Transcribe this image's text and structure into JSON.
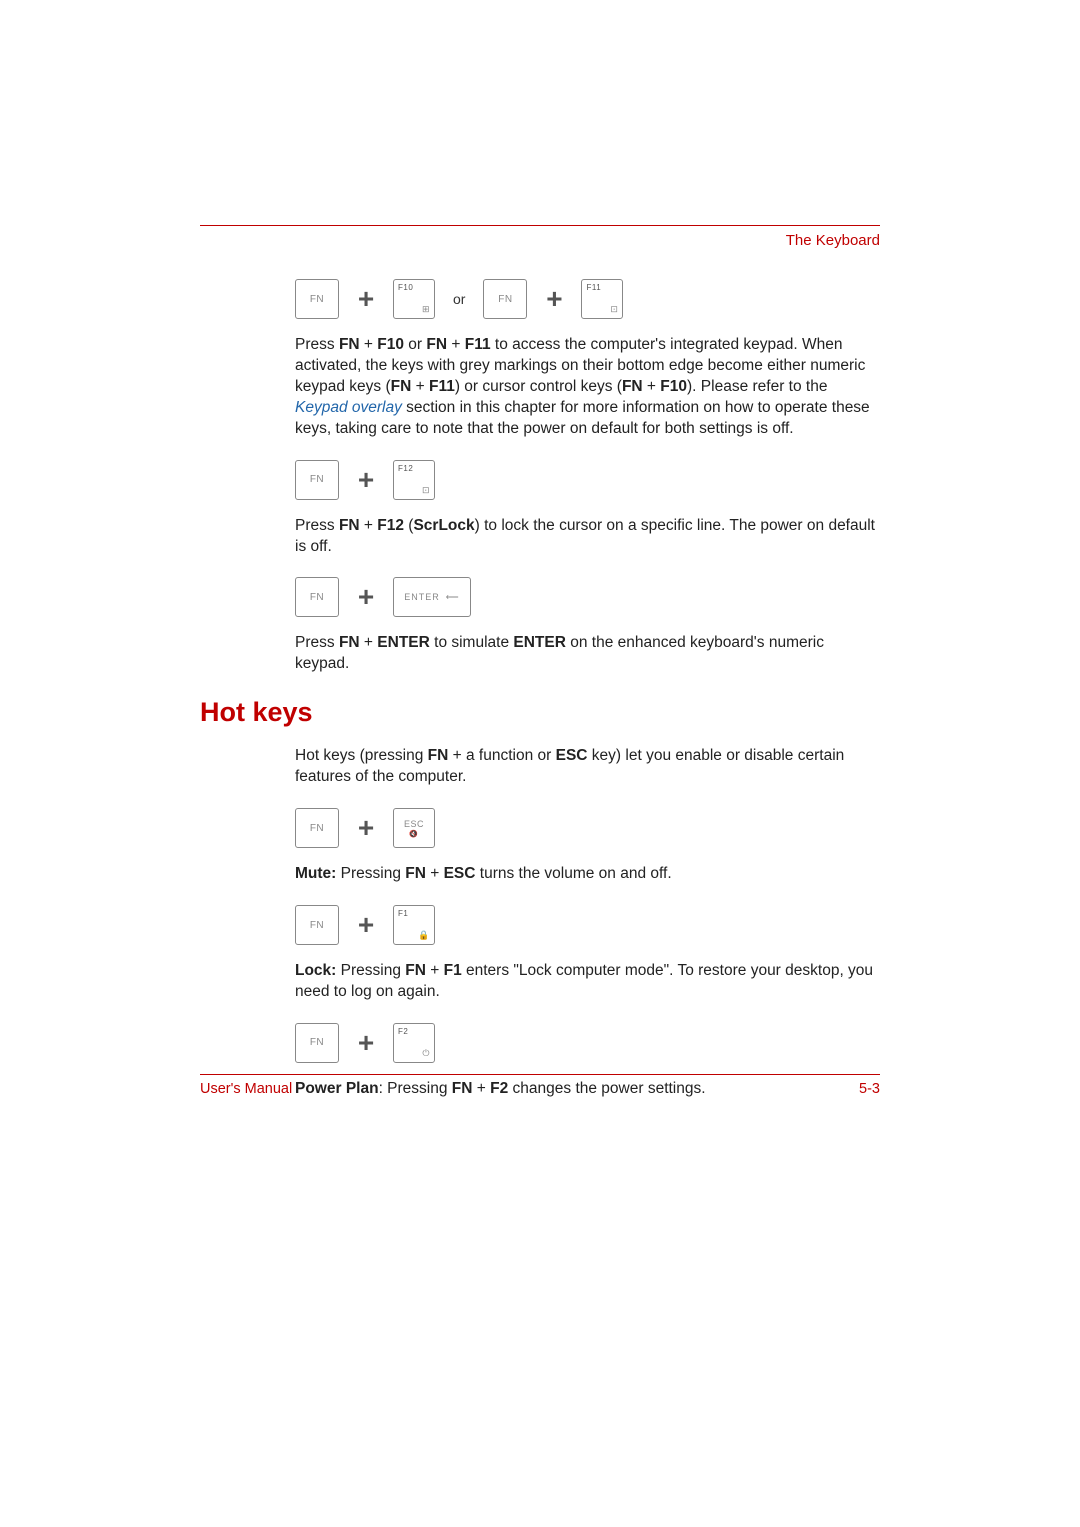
{
  "colors": {
    "accent": "#c00000",
    "link": "#2266aa",
    "text": "#222222",
    "key_border": "#888888",
    "key_text": "#888888",
    "background": "#ffffff"
  },
  "typography": {
    "body_fontsize_pt": 12,
    "heading_fontsize_pt": 20,
    "key_label_fontsize_pt": 7,
    "footer_fontsize_pt": 11,
    "font_family": "Arial"
  },
  "header": {
    "section_label": "The Keyboard"
  },
  "keys": {
    "fn": "FN",
    "f10": "F10",
    "f11": "F11",
    "f12": "F12",
    "f1": "F1",
    "f2": "F2",
    "enter": "ENTER",
    "esc": "ESC",
    "or": "or",
    "plus": "+",
    "enter_arrow": "↵",
    "esc_sub": "🔇",
    "f10_icon": "⊞",
    "f11_icon": "⊡",
    "f12_icon": "⊡",
    "f1_icon": "🔒",
    "f2_icon": "⏻"
  },
  "paragraphs": {
    "p1_a": "Press ",
    "p1_b": "FN",
    "p1_c": " + ",
    "p1_d": "F10",
    "p1_e": " or ",
    "p1_f": "FN",
    "p1_g": " + ",
    "p1_h": "F11",
    "p1_i": " to access the computer's integrated keypad. When activated, the keys with grey markings on their bottom edge become either numeric keypad keys (",
    "p1_j": "FN",
    "p1_k": " + ",
    "p1_l": "F11",
    "p1_m": ") or cursor control keys (",
    "p1_n": "FN",
    "p1_o": " + ",
    "p1_p": "F10",
    "p1_q": "). Please refer to the ",
    "p1_link": "Keypad overlay",
    "p1_r": " section in this chapter for more information on how to operate these keys, taking care to note that the power on default for both settings is off.",
    "p2_a": "Press ",
    "p2_b": "FN",
    "p2_c": " + ",
    "p2_d": "F12",
    "p2_e": " (",
    "p2_f": "ScrLock",
    "p2_g": ") to lock the cursor on a specific line. The power on default is off.",
    "p3_a": "Press ",
    "p3_b": "FN",
    "p3_c": " + ",
    "p3_d": "ENTER",
    "p3_e": " to simulate ",
    "p3_f": "ENTER",
    "p3_g": " on the enhanced keyboard's numeric keypad.",
    "hotkeys_intro_a": "Hot keys (pressing ",
    "hotkeys_intro_b": "FN",
    "hotkeys_intro_c": " + a function or ",
    "hotkeys_intro_d": "ESC",
    "hotkeys_intro_e": " key) let you enable or disable certain features of the computer.",
    "mute_a": "Mute:",
    "mute_b": " Pressing ",
    "mute_c": "FN",
    "mute_d": " + ",
    "mute_e": "ESC",
    "mute_f": " turns the volume on and off.",
    "lock_a": "Lock:",
    "lock_b": " Pressing ",
    "lock_c": "FN",
    "lock_d": " + ",
    "lock_e": "F1",
    "lock_f": " enters \"Lock computer mode\". To restore your desktop, you need to log on again.",
    "power_a": "Power Plan",
    "power_b": ": Pressing ",
    "power_c": "FN",
    "power_d": " + ",
    "power_e": "F2",
    "power_f": " changes the power settings."
  },
  "headings": {
    "hotkeys": "Hot keys"
  },
  "footer": {
    "left": "User's Manual",
    "right": "5-3"
  }
}
